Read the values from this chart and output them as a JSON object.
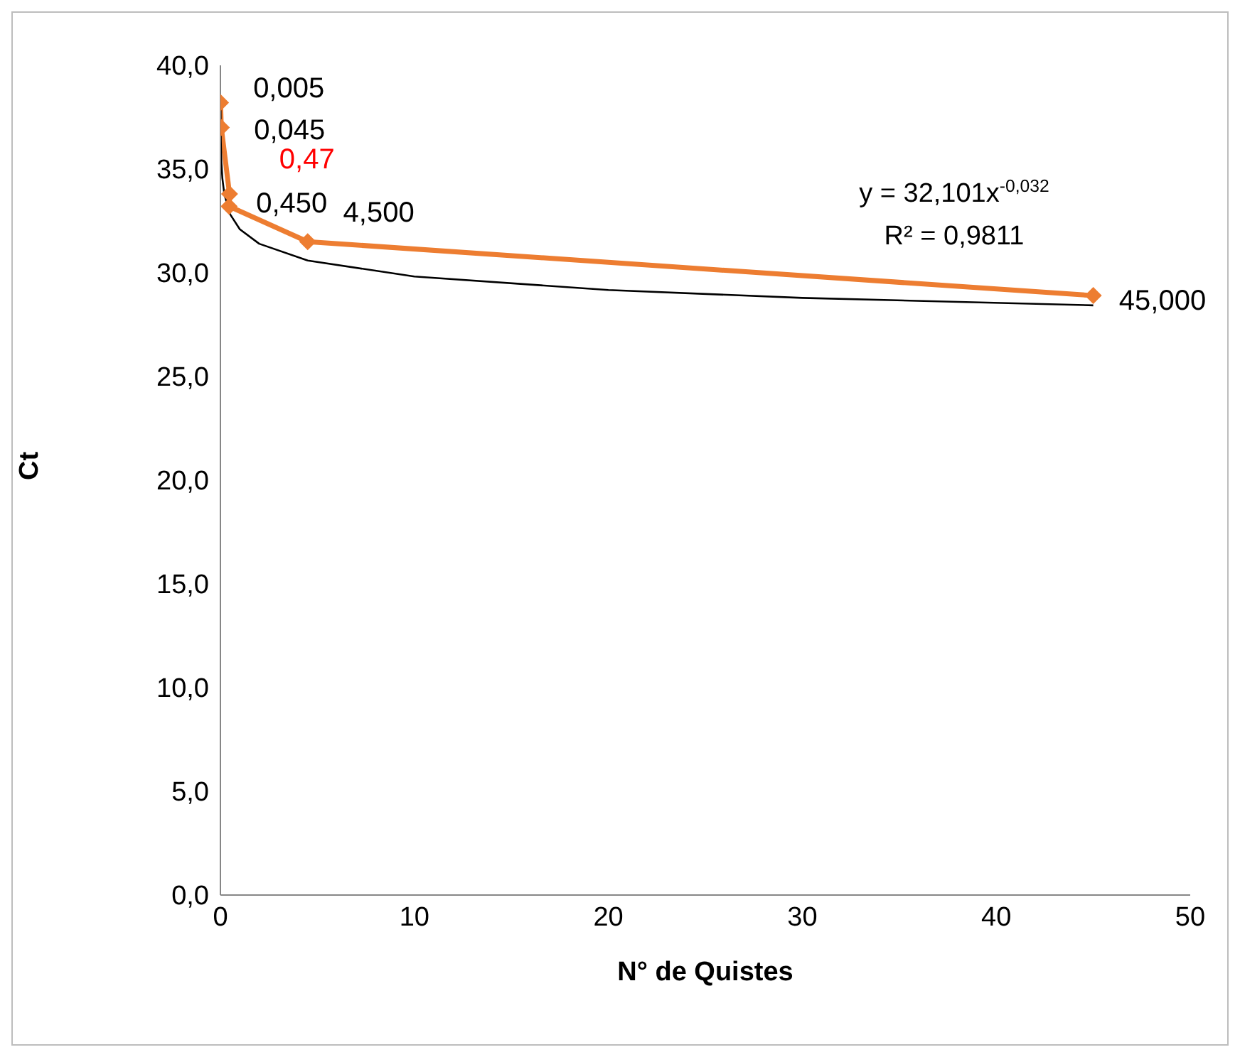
{
  "chart_data": {
    "type": "line",
    "grid": false,
    "xlabel": "N° de Quistes",
    "ylabel": "Ct",
    "xlim": [
      0,
      50
    ],
    "xticks": [
      0,
      10,
      20,
      30,
      40,
      50
    ],
    "ylim": [
      0,
      40
    ],
    "yticks": [
      {
        "value": 0,
        "label": "0,0"
      },
      {
        "value": 5,
        "label": "5,0"
      },
      {
        "value": 10,
        "label": "10,0"
      },
      {
        "value": 15,
        "label": "15,0"
      },
      {
        "value": 20,
        "label": "20,0"
      },
      {
        "value": 25,
        "label": "25,0"
      },
      {
        "value": 30,
        "label": "30,0"
      },
      {
        "value": 35,
        "label": "35,0"
      },
      {
        "value": 40,
        "label": "40,0"
      }
    ],
    "marker": "diamond",
    "series": [
      {
        "color": "#ed7d31",
        "x": [
          0.005,
          0.045,
          0.47,
          0.45,
          4.5,
          45
        ],
        "values": [
          38.2,
          37.0,
          33.8,
          33.2,
          31.5,
          28.9
        ]
      },
      {
        "color": "#000000",
        "marker": "none",
        "x": [
          0.005,
          0.02,
          0.05,
          0.1,
          0.2,
          0.5,
          1,
          2,
          4.5,
          10,
          20,
          30,
          45
        ],
        "values": [
          38.03,
          36.38,
          35.33,
          34.56,
          33.8,
          32.82,
          32.1,
          31.4,
          30.59,
          29.82,
          29.17,
          28.79,
          28.43
        ]
      }
    ],
    "annotations": [
      {
        "text": "0,005",
        "x": 0.005,
        "y": 38.2
      },
      {
        "text": "0,045",
        "x": 0.045,
        "y": 37.0
      },
      {
        "text": "0,47",
        "x": 0.47,
        "y": 33.8
      },
      {
        "text": "0,450",
        "x": 0.45,
        "y": 33.2
      },
      {
        "text": "4,500",
        "x": 4.5,
        "y": 31.5
      },
      {
        "text": "45,000",
        "x": 45,
        "y": 28.9
      },
      "y = 32,101x$^{-0,032}$",
      "R² = 0,9811"
    ]
  }
}
